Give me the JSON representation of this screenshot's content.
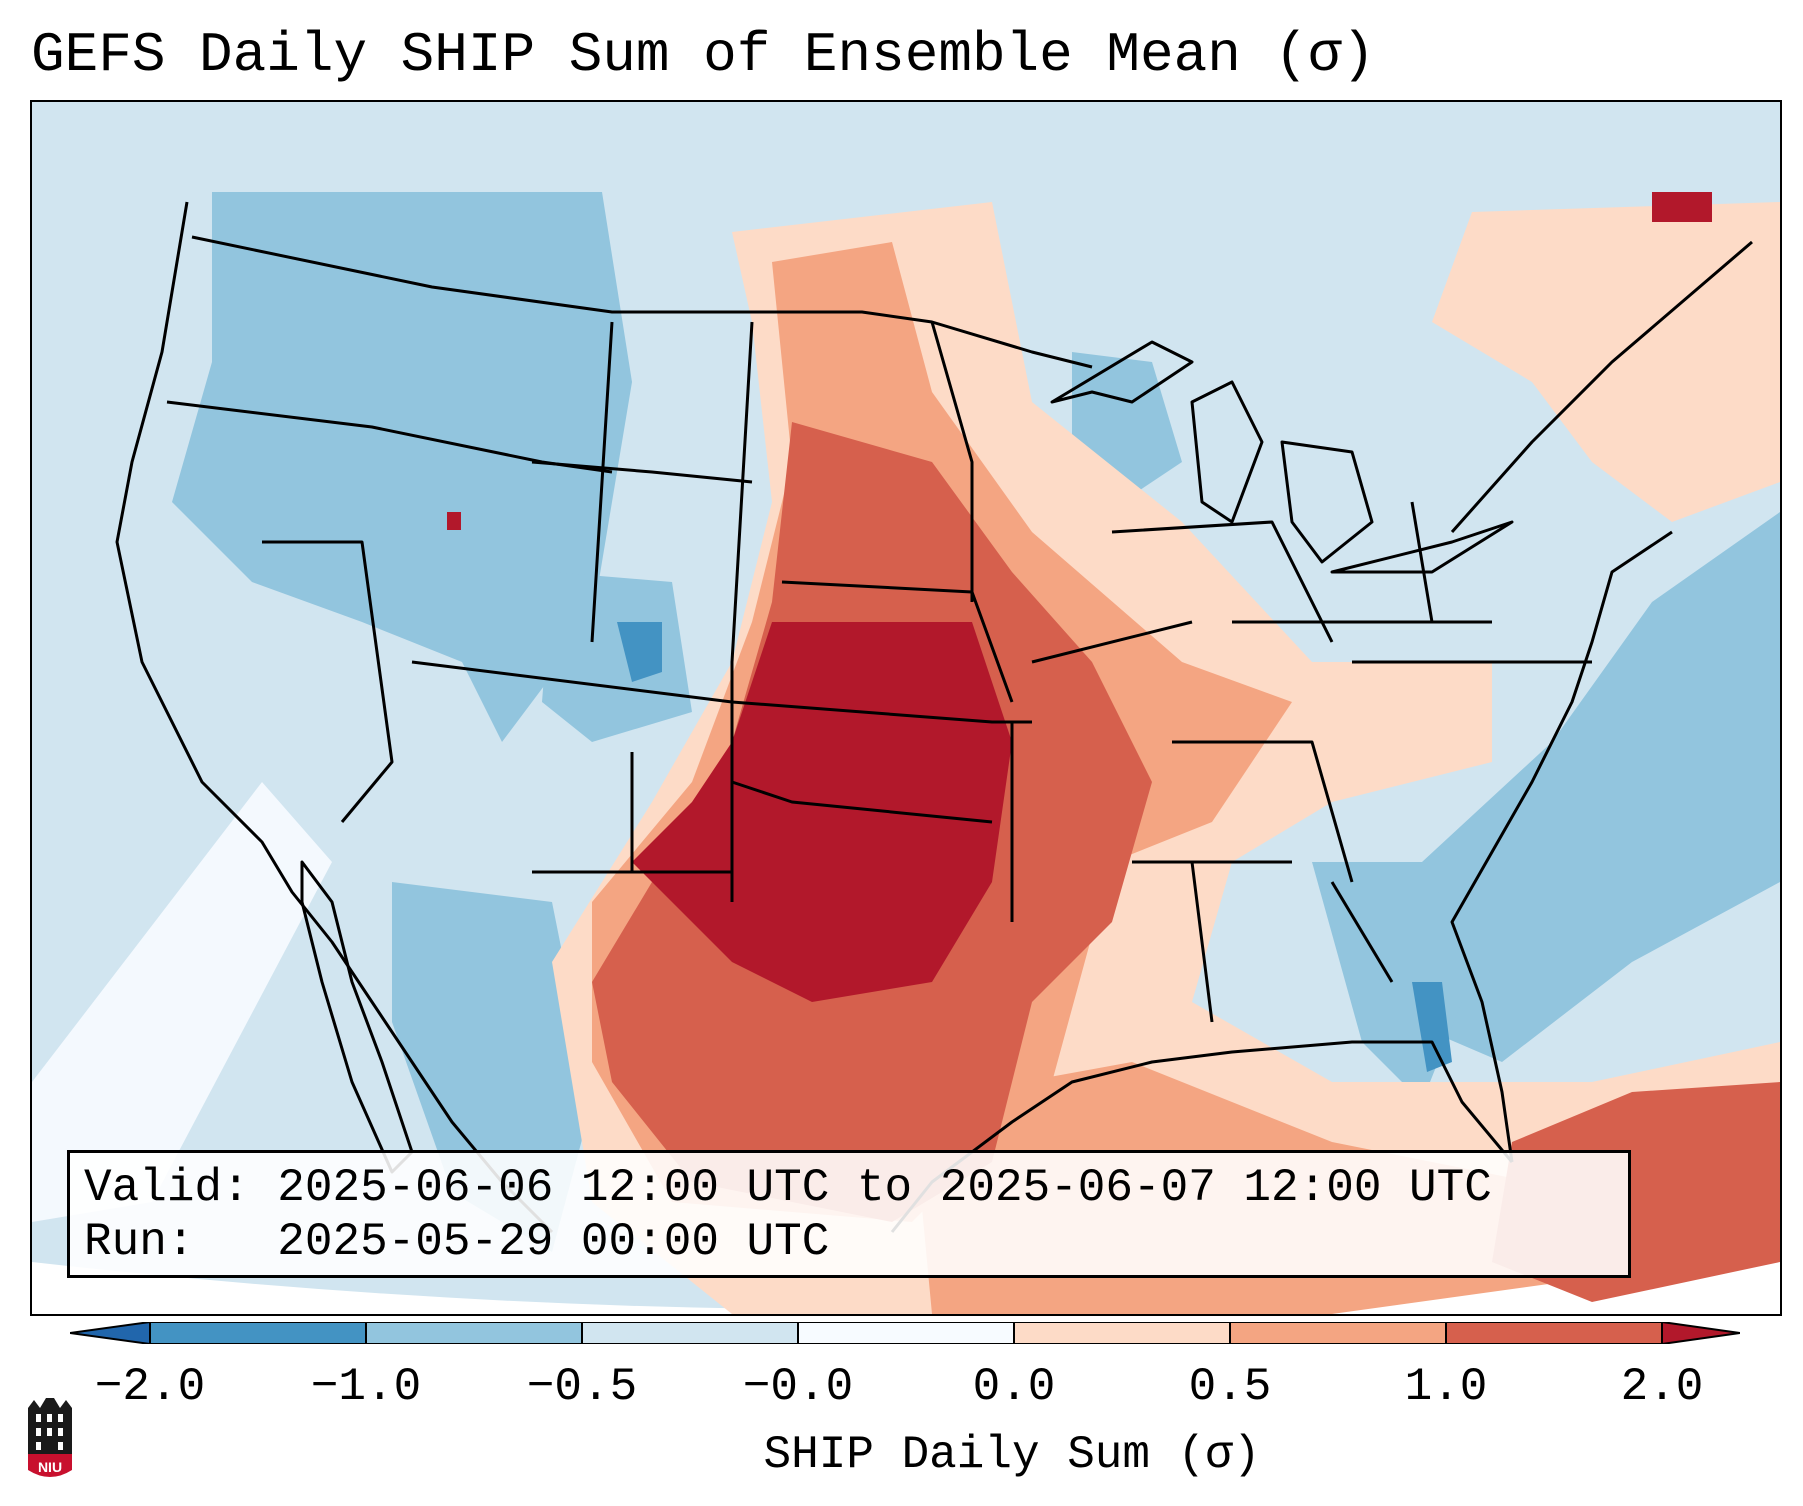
{
  "title": "GEFS Daily SHIP Sum of Ensemble Mean (σ)",
  "info": {
    "valid_label": "Valid:",
    "valid_value": "2025-06-06 12:00 UTC to 2025-06-07 12:00 UTC",
    "run_label": "Run:  ",
    "run_value": "2025-05-29 00:00 UTC"
  },
  "colorbar": {
    "label": "SHIP Daily Sum (σ)",
    "ticks": [
      "−2.0",
      "−1.0",
      "−0.5",
      "−0.0",
      "0.0",
      "0.5",
      "1.0",
      "2.0"
    ],
    "colors": [
      "#4393c3",
      "#92c5de",
      "#d1e5f0",
      "#f7fbff",
      "#fddbc7",
      "#f4a582",
      "#d6604d",
      "#b2182b"
    ],
    "extend_low_color": "#2166ac",
    "extend_high_color": "#b2182b"
  },
  "logo": {
    "text": "NIU",
    "name": "niu-logo"
  }
}
